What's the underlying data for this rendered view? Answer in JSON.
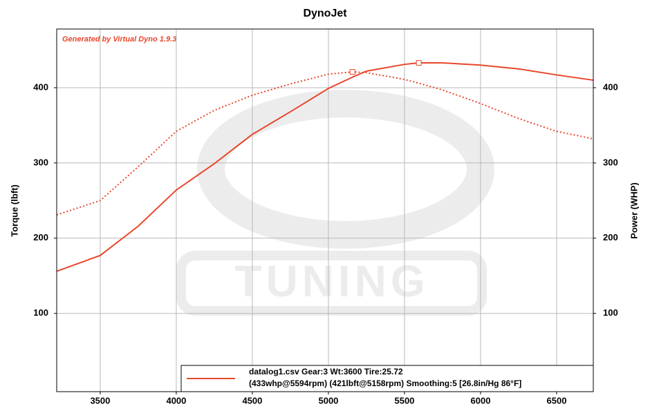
{
  "chart_data": {
    "type": "line",
    "title": "DynoJet",
    "annotation": "Generated by Virtual Dyno 1.9.3",
    "watermark": "TUNING",
    "y_label": "Torque (lbft)",
    "y2_label": "Power (WHP)",
    "x": [
      3214,
      3500,
      3750,
      4000,
      4250,
      4500,
      4750,
      5000,
      5158,
      5250,
      5500,
      5594,
      5750,
      6000,
      6250,
      6500,
      6741
    ],
    "series": [
      {
        "color": "#e8462a",
        "style": "dotted",
        "values": [
          231,
          250,
          295,
          342,
          370,
          390,
          405,
          418,
          421,
          420,
          411,
          406,
          397,
          379,
          359,
          342,
          332
        ]
      },
      {
        "color": "#e8462a",
        "style": "solid",
        "axis": "y2",
        "values": [
          156,
          177,
          216,
          264,
          299,
          338,
          368,
          399,
          414,
          422,
          431,
          433,
          433,
          430,
          425,
          417,
          410
        ]
      }
    ],
    "legend": [
      "datalog1.csv Gear:3 Wt:3600 Tire:25.72",
      "(433whp@5594rpm) (421lbft@5158rpm) Smoothing:5 [26.8in/Hg 86°F]"
    ],
    "xlim": [
      3214,
      6741
    ],
    "xticks": [
      3500,
      4000,
      4500,
      5000,
      5500,
      6000,
      6500
    ],
    "ylim": [
      -4,
      478
    ],
    "yticks": [
      100,
      200,
      300,
      400
    ],
    "y2lim": [
      -4,
      478
    ],
    "y2ticks": [
      100,
      200,
      300,
      400
    ],
    "grid": true
  }
}
